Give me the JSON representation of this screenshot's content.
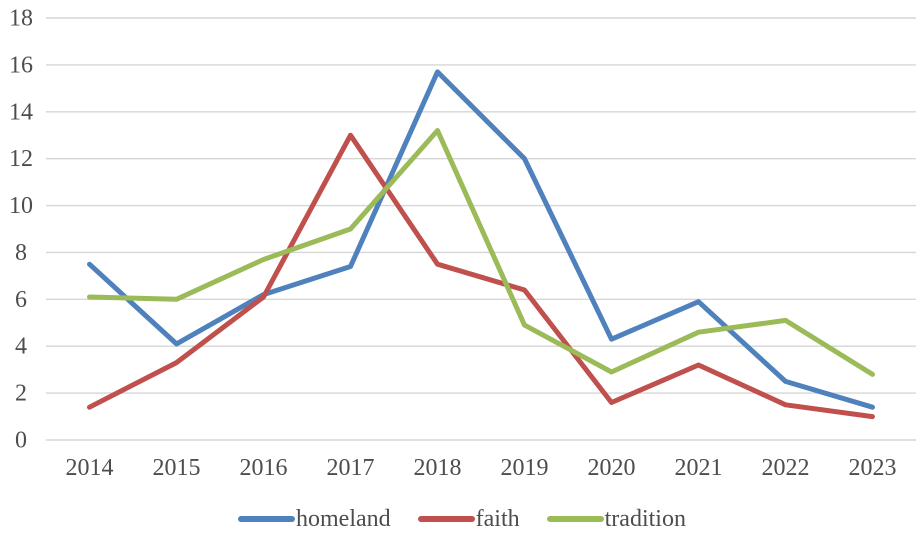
{
  "chart_data": {
    "type": "line",
    "title": "",
    "xlabel": "",
    "ylabel": "",
    "categories": [
      "2014",
      "2015",
      "2016",
      "2017",
      "2018",
      "2019",
      "2020",
      "2021",
      "2022",
      "2023"
    ],
    "series": [
      {
        "name": "homeland",
        "color": "#4F81BD",
        "values": [
          7.5,
          4.1,
          6.2,
          7.4,
          15.7,
          12.0,
          4.3,
          5.9,
          2.5,
          1.4
        ]
      },
      {
        "name": "faith",
        "color": "#C0504D",
        "values": [
          1.4,
          3.3,
          6.1,
          13.0,
          7.5,
          6.4,
          1.6,
          3.2,
          1.5,
          1.0
        ]
      },
      {
        "name": "tradition",
        "color": "#9BBB59",
        "values": [
          6.1,
          6.0,
          7.7,
          9.0,
          13.2,
          4.9,
          2.9,
          4.6,
          5.1,
          2.8
        ]
      }
    ],
    "ylim": [
      0,
      18
    ],
    "ytick_step": 2,
    "grid": true,
    "gridline_color": "#D6D6D6",
    "axis_text_color": "#4D4D4D",
    "line_width": 5,
    "legend_position": "bottom-center",
    "background_color": "#FFFFFF"
  }
}
